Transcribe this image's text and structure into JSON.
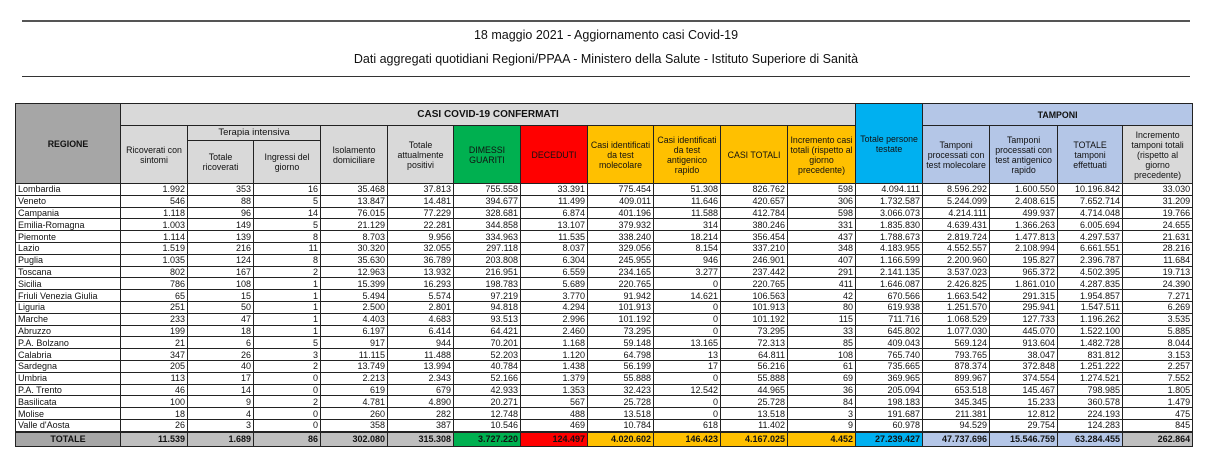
{
  "title": "18 maggio 2021 - Aggiornamento casi Covid-19",
  "subtitle": "Dati aggregati quotidiani Regioni/PPAA - Ministero della Salute - Istituto Superiore di Sanità",
  "headers": {
    "regione": "REGIONE",
    "casi_group": "CASI COVID-19 CONFERMATI",
    "tamponi_group": "TAMPONI",
    "terapia_group": "Terapia intensiva",
    "ricoverati": "Ricoverati con sintomi",
    "ti_totale": "Totale ricoverati",
    "ti_ingressi": "Ingressi del giorno",
    "isolamento": "Isolamento domiciliare",
    "attualmente": "Totale attualmente positivi",
    "dimessi": "DIMESSI GUARITI",
    "deceduti": "DECEDUTI",
    "casi_mol": "Casi identificati da test molecolare",
    "casi_ant": "Casi identificati da test antigenico rapido",
    "casi_tot": "CASI TOTALI",
    "incr_casi": "Incremento casi totali (rispetto al giorno precedente)",
    "persone": "Totale persone testate",
    "tamp_mol": "Tamponi processati con test molecolare",
    "tamp_ant": "Tamponi processati con test antigenico rapido",
    "tamp_tot": "TOTALE tamponi effettuati",
    "incr_tamp": "Incremento tamponi totali (rispetto al giorno precedente)"
  },
  "colors": {
    "header_gray": "#d9d9d9",
    "regione_gray": "#a6a6a6",
    "dimessi": "#00b050",
    "deceduti": "#ff0000",
    "casi": "#ffc000",
    "persone": "#00b0f0",
    "tamponi": "#b4c6e7"
  },
  "rows": [
    [
      "Lombardia",
      "1.992",
      "353",
      "16",
      "35.468",
      "37.813",
      "755.558",
      "33.391",
      "775.454",
      "51.308",
      "826.762",
      "598",
      "4.094.111",
      "8.596.292",
      "1.600.550",
      "10.196.842",
      "33.030"
    ],
    [
      "Veneto",
      "546",
      "88",
      "5",
      "13.847",
      "14.481",
      "394.677",
      "11.499",
      "409.011",
      "11.646",
      "420.657",
      "306",
      "1.732.587",
      "5.244.099",
      "2.408.615",
      "7.652.714",
      "31.209"
    ],
    [
      "Campania",
      "1.118",
      "96",
      "14",
      "76.015",
      "77.229",
      "328.681",
      "6.874",
      "401.196",
      "11.588",
      "412.784",
      "598",
      "3.066.073",
      "4.214.111",
      "499.937",
      "4.714.048",
      "19.766"
    ],
    [
      "Emilia-Romagna",
      "1.003",
      "149",
      "5",
      "21.129",
      "22.281",
      "344.858",
      "13.107",
      "379.932",
      "314",
      "380.246",
      "331",
      "1.835.830",
      "4.639.431",
      "1.366.263",
      "6.005.694",
      "24.655"
    ],
    [
      "Piemonte",
      "1.114",
      "139",
      "8",
      "8.703",
      "9.956",
      "334.963",
      "11.535",
      "338.240",
      "18.214",
      "356.454",
      "437",
      "1.788.673",
      "2.819.724",
      "1.477.813",
      "4.297.537",
      "21.631"
    ],
    [
      "Lazio",
      "1.519",
      "216",
      "11",
      "30.320",
      "32.055",
      "297.118",
      "8.037",
      "329.056",
      "8.154",
      "337.210",
      "348",
      "4.183.955",
      "4.552.557",
      "2.108.994",
      "6.661.551",
      "28.216"
    ],
    [
      "Puglia",
      "1.035",
      "124",
      "8",
      "35.630",
      "36.789",
      "203.808",
      "6.304",
      "245.955",
      "946",
      "246.901",
      "407",
      "1.166.599",
      "2.200.960",
      "195.827",
      "2.396.787",
      "11.684"
    ],
    [
      "Toscana",
      "802",
      "167",
      "2",
      "12.963",
      "13.932",
      "216.951",
      "6.559",
      "234.165",
      "3.277",
      "237.442",
      "291",
      "2.141.135",
      "3.537.023",
      "965.372",
      "4.502.395",
      "19.713"
    ],
    [
      "Sicilia",
      "786",
      "108",
      "1",
      "15.399",
      "16.293",
      "198.783",
      "5.689",
      "220.765",
      "0",
      "220.765",
      "411",
      "1.646.087",
      "2.426.825",
      "1.861.010",
      "4.287.835",
      "24.390"
    ],
    [
      "Friuli Venezia Giulia",
      "65",
      "15",
      "1",
      "5.494",
      "5.574",
      "97.219",
      "3.770",
      "91.942",
      "14.621",
      "106.563",
      "42",
      "670.566",
      "1.663.542",
      "291.315",
      "1.954.857",
      "7.271"
    ],
    [
      "Liguria",
      "251",
      "50",
      "1",
      "2.500",
      "2.801",
      "94.818",
      "4.294",
      "101.913",
      "0",
      "101.913",
      "80",
      "619.938",
      "1.251.570",
      "295.941",
      "1.547.511",
      "6.269"
    ],
    [
      "Marche",
      "233",
      "47",
      "1",
      "4.403",
      "4.683",
      "93.513",
      "2.996",
      "101.192",
      "0",
      "101.192",
      "115",
      "711.716",
      "1.068.529",
      "127.733",
      "1.196.262",
      "3.535"
    ],
    [
      "Abruzzo",
      "199",
      "18",
      "1",
      "6.197",
      "6.414",
      "64.421",
      "2.460",
      "73.295",
      "0",
      "73.295",
      "33",
      "645.802",
      "1.077.030",
      "445.070",
      "1.522.100",
      "5.885"
    ],
    [
      "P.A. Bolzano",
      "21",
      "6",
      "5",
      "917",
      "944",
      "70.201",
      "1.168",
      "59.148",
      "13.165",
      "72.313",
      "85",
      "409.043",
      "569.124",
      "913.604",
      "1.482.728",
      "8.044"
    ],
    [
      "Calabria",
      "347",
      "26",
      "3",
      "11.115",
      "11.488",
      "52.203",
      "1.120",
      "64.798",
      "13",
      "64.811",
      "108",
      "765.740",
      "793.765",
      "38.047",
      "831.812",
      "3.153"
    ],
    [
      "Sardegna",
      "205",
      "40",
      "2",
      "13.749",
      "13.994",
      "40.784",
      "1.438",
      "56.199",
      "17",
      "56.216",
      "61",
      "735.665",
      "878.374",
      "372.848",
      "1.251.222",
      "2.257"
    ],
    [
      "Umbria",
      "113",
      "17",
      "0",
      "2.213",
      "2.343",
      "52.166",
      "1.379",
      "55.888",
      "0",
      "55.888",
      "69",
      "369.965",
      "899.967",
      "374.554",
      "1.274.521",
      "7.552"
    ],
    [
      "P.A. Trento",
      "46",
      "14",
      "0",
      "619",
      "679",
      "42.933",
      "1.353",
      "32.423",
      "12.542",
      "44.965",
      "36",
      "205.094",
      "653.518",
      "145.467",
      "798.985",
      "1.805"
    ],
    [
      "Basilicata",
      "100",
      "9",
      "2",
      "4.781",
      "4.890",
      "20.271",
      "567",
      "25.728",
      "0",
      "25.728",
      "84",
      "198.183",
      "345.345",
      "15.233",
      "360.578",
      "1.479"
    ],
    [
      "Molise",
      "18",
      "4",
      "0",
      "260",
      "282",
      "12.748",
      "488",
      "13.518",
      "0",
      "13.518",
      "3",
      "191.687",
      "211.381",
      "12.812",
      "224.193",
      "475"
    ],
    [
      "Valle d'Aosta",
      "26",
      "3",
      "0",
      "358",
      "387",
      "10.546",
      "469",
      "10.784",
      "618",
      "11.402",
      "9",
      "60.978",
      "94.529",
      "29.754",
      "124.283",
      "845"
    ]
  ],
  "total": [
    "TOTALE",
    "11.539",
    "1.689",
    "86",
    "302.080",
    "315.308",
    "3.727.220",
    "124.497",
    "4.020.602",
    "146.423",
    "4.167.025",
    "4.452",
    "27.239.427",
    "47.737.696",
    "15.546.759",
    "63.284.455",
    "262.864"
  ]
}
